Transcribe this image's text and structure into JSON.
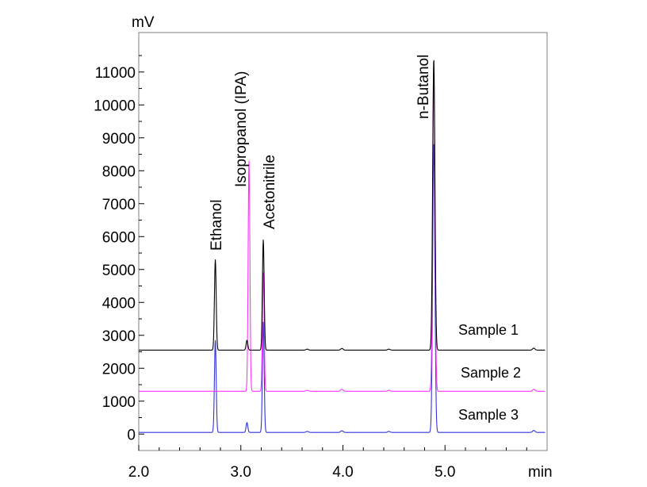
{
  "chart_data": {
    "type": "line",
    "title": "",
    "xlabel": "min",
    "ylabel": "mV",
    "xlim": [
      2.0,
      6.0
    ],
    "ylim": [
      -500,
      12200
    ],
    "x_ticks": [
      2.0,
      3.0,
      4.0,
      5.0
    ],
    "x_tick_labels": [
      "2.0",
      "3.0",
      "4.0",
      "5.0"
    ],
    "y_ticks": [
      0,
      1000,
      2000,
      3000,
      4000,
      5000,
      6000,
      7000,
      8000,
      9000,
      10000,
      11000
    ],
    "y_tick_labels": [
      "0",
      "1000",
      "2000",
      "3000",
      "4000",
      "5000",
      "6000",
      "7000",
      "8000",
      "9000",
      "10000",
      "11000"
    ],
    "grid": false,
    "peaks": [
      {
        "name": "Ethanol",
        "rt": 2.75
      },
      {
        "name": "Isopropanol (IPA)",
        "rt": 3.08
      },
      {
        "name": "Acetonitrile",
        "rt": 3.22
      },
      {
        "name": "n-Butanol",
        "rt": 4.89
      }
    ],
    "series": [
      {
        "name": "Sample 1",
        "color": "#000000",
        "baseline": 2550,
        "peaks": [
          {
            "rt": 2.75,
            "height": 2750
          },
          {
            "rt": 3.06,
            "height": 300
          },
          {
            "rt": 3.22,
            "height": 3350
          },
          {
            "rt": 4.89,
            "height": 8850
          }
        ],
        "bumps": [
          {
            "rt": 3.65,
            "height": 30
          },
          {
            "rt": 3.99,
            "height": 50
          },
          {
            "rt": 4.45,
            "height": 30
          },
          {
            "rt": 5.87,
            "height": 60
          }
        ]
      },
      {
        "name": "Sample 2",
        "color": "#ff33ff",
        "baseline": 1300,
        "peaks": [
          {
            "rt": 3.08,
            "height": 7000
          },
          {
            "rt": 3.22,
            "height": 3600
          },
          {
            "rt": 4.89,
            "height": 9700
          }
        ],
        "bumps": [
          {
            "rt": 3.65,
            "height": 30
          },
          {
            "rt": 3.99,
            "height": 60
          },
          {
            "rt": 4.45,
            "height": 30
          },
          {
            "rt": 5.87,
            "height": 60
          }
        ]
      },
      {
        "name": "Sample 3",
        "color": "#3333dd",
        "baseline": 50,
        "peaks": [
          {
            "rt": 2.75,
            "height": 2800
          },
          {
            "rt": 3.06,
            "height": 300
          },
          {
            "rt": 3.22,
            "height": 3350
          },
          {
            "rt": 4.89,
            "height": 8800
          }
        ],
        "bumps": [
          {
            "rt": 3.65,
            "height": 30
          },
          {
            "rt": 3.99,
            "height": 50
          },
          {
            "rt": 4.45,
            "height": 30
          },
          {
            "rt": 5.87,
            "height": 60
          }
        ]
      }
    ]
  }
}
